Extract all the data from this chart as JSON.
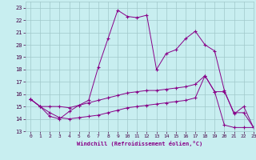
{
  "xlabel": "Windchill (Refroidissement éolien,°C)",
  "xlim": [
    -0.5,
    23
  ],
  "ylim": [
    13,
    23.5
  ],
  "yticks": [
    13,
    14,
    15,
    16,
    17,
    18,
    19,
    20,
    21,
    22,
    23
  ],
  "xticks": [
    0,
    1,
    2,
    3,
    4,
    5,
    6,
    7,
    8,
    9,
    10,
    11,
    12,
    13,
    14,
    15,
    16,
    17,
    18,
    19,
    20,
    21,
    22,
    23
  ],
  "background_color": "#c8eef0",
  "grid_color": "#a0c8ca",
  "line_color": "#880088",
  "lines": [
    {
      "x": [
        0,
        1,
        2,
        3,
        4,
        5,
        6,
        7,
        8,
        9,
        10,
        11,
        12,
        13,
        14,
        15,
        16,
        17,
        18,
        19,
        20,
        21,
        22,
        23
      ],
      "y": [
        15.6,
        15.0,
        14.2,
        14.0,
        14.6,
        15.1,
        15.5,
        18.2,
        20.5,
        22.8,
        22.3,
        22.2,
        22.4,
        18.0,
        19.3,
        19.6,
        20.5,
        21.1,
        20.0,
        19.5,
        16.3,
        14.4,
        15.0,
        13.3
      ]
    },
    {
      "x": [
        0,
        1,
        2,
        3,
        4,
        5,
        6,
        7,
        8,
        9,
        10,
        11,
        12,
        13,
        14,
        15,
        16,
        17,
        18,
        19,
        20,
        21,
        22,
        23
      ],
      "y": [
        15.6,
        15.0,
        14.5,
        14.1,
        14.0,
        14.1,
        14.2,
        14.3,
        14.5,
        14.7,
        14.9,
        15.0,
        15.1,
        15.2,
        15.3,
        15.4,
        15.5,
        15.7,
        17.5,
        16.2,
        13.5,
        13.3,
        13.3,
        13.3
      ]
    },
    {
      "x": [
        0,
        1,
        2,
        3,
        4,
        5,
        6,
        7,
        8,
        9,
        10,
        11,
        12,
        13,
        14,
        15,
        16,
        17,
        18,
        19,
        20,
        21,
        22,
        23
      ],
      "y": [
        15.6,
        15.0,
        15.0,
        15.0,
        14.9,
        15.1,
        15.3,
        15.5,
        15.7,
        15.9,
        16.1,
        16.2,
        16.3,
        16.3,
        16.4,
        16.5,
        16.6,
        16.8,
        17.5,
        16.2,
        16.2,
        14.5,
        14.5,
        13.3
      ]
    }
  ]
}
